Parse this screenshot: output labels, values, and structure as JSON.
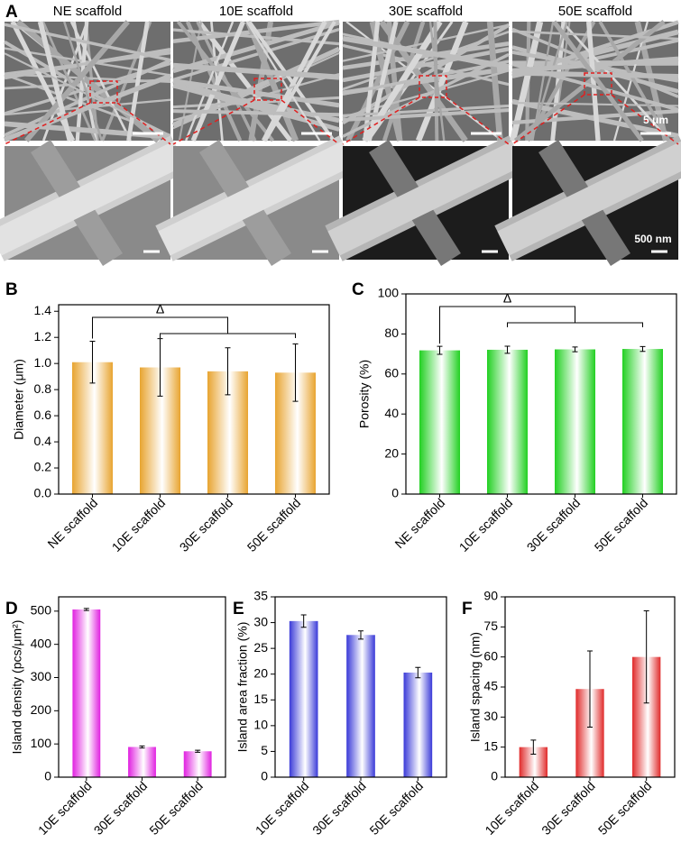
{
  "panel_a": {
    "label": "A",
    "columns": [
      "NE scaffold",
      "10E scaffold",
      "30E scaffold",
      "50E scaffold"
    ],
    "scale_bar_top": "5 μm",
    "scale_bar_bottom": "500 nm"
  },
  "chart_data": [
    {
      "type": "bar",
      "panel_label": "B",
      "y_label": "Diameter (μm)",
      "annotation": "Δ",
      "categories": [
        "NE scaffold",
        "10E scaffold",
        "30E scaffold",
        "50E scaffold"
      ],
      "values": [
        1.01,
        0.97,
        0.94,
        0.93
      ],
      "errors": [
        0.16,
        0.22,
        0.18,
        0.22
      ],
      "color": "#e8a430",
      "ylim": [
        0,
        1.45
      ],
      "yticks": [
        {
          "value": 0,
          "label": "0.0"
        },
        {
          "value": 0.2,
          "label": "0.2"
        },
        {
          "value": 0.4,
          "label": "0.4"
        },
        {
          "value": 0.6,
          "label": "0.6"
        },
        {
          "value": 0.8,
          "label": "0.8"
        },
        {
          "value": 1.0,
          "label": "1.0"
        },
        {
          "value": 1.2,
          "label": "1.2"
        },
        {
          "value": 1.4,
          "label": "1.4"
        }
      ]
    },
    {
      "type": "bar",
      "panel_label": "C",
      "y_label": "Porosity (%)",
      "annotation": "Δ",
      "categories": [
        "NE scaffold",
        "10E scaffold",
        "30E scaffold",
        "50E scaffold"
      ],
      "values": [
        71.8,
        72.1,
        72.3,
        72.5
      ],
      "errors": [
        2.0,
        1.8,
        1.2,
        1.2
      ],
      "color": "#22d022",
      "ylim": [
        0,
        100
      ],
      "yticks": [
        0,
        20,
        40,
        60,
        80,
        100
      ]
    },
    {
      "type": "bar",
      "panel_label": "D",
      "y_label": "Island density (pcs/μm²)",
      "categories": [
        "10E scaffold",
        "30E scaffold",
        "50E scaffold"
      ],
      "values": [
        505,
        91,
        78
      ],
      "errors": [
        3,
        3,
        3
      ],
      "color": "#e020e0",
      "ylim": [
        0,
        543
      ],
      "yticks": [
        0,
        100,
        200,
        300,
        400,
        500
      ]
    },
    {
      "type": "bar",
      "panel_label": "E",
      "y_label": "Island area fraction (%)",
      "categories": [
        "10E scaffold",
        "30E scaffold",
        "50E scaffold"
      ],
      "values": [
        30.3,
        27.6,
        20.3
      ],
      "errors": [
        1.2,
        0.8,
        1.0
      ],
      "color": "#3a3ad8",
      "ylim": [
        0,
        35
      ],
      "yticks": [
        0,
        5,
        10,
        15,
        20,
        25,
        30,
        35
      ]
    },
    {
      "type": "bar",
      "panel_label": "F",
      "y_label": "Island spacing (nm)",
      "categories": [
        "10E scaffold",
        "30E scaffold",
        "50E scaffold"
      ],
      "values": [
        15,
        44,
        60
      ],
      "errors": [
        3.5,
        19,
        23
      ],
      "color": "#e02a2a",
      "ylim": [
        0,
        90
      ],
      "yticks": [
        0,
        15,
        30,
        45,
        60,
        75,
        90
      ]
    }
  ]
}
